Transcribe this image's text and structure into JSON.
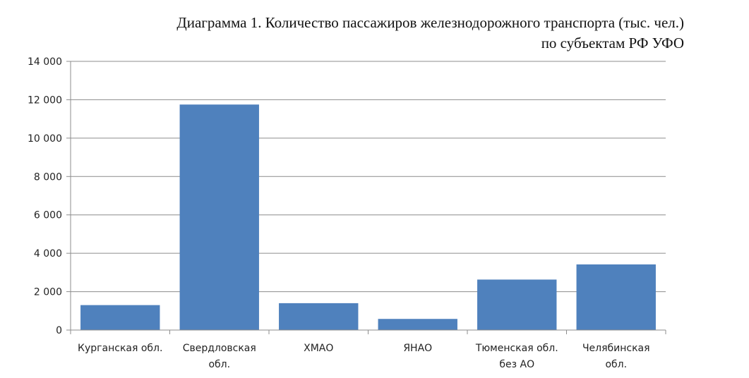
{
  "chart_data": {
    "type": "bar",
    "title_line1": "Диаграмма 1. Количество пассажиров железнодорожного транспорта (тыс. чел.)",
    "title_line2": "по субъектам РФ УФО",
    "categories": [
      [
        "Курганская обл."
      ],
      [
        "Свердловская",
        "обл."
      ],
      [
        "ХМАО"
      ],
      [
        "ЯНАО"
      ],
      [
        "Тюменская обл.",
        "без АО"
      ],
      [
        "Челябинская",
        "обл."
      ]
    ],
    "values": [
      1300,
      11750,
      1400,
      580,
      2630,
      3420
    ],
    "ylim": [
      0,
      14000
    ],
    "yticks": [
      0,
      2000,
      4000,
      6000,
      8000,
      10000,
      12000,
      14000
    ],
    "ytick_labels": [
      "0",
      "2 000",
      "4 000",
      "6 000",
      "8 000",
      "10 000",
      "12 000",
      "14 000"
    ],
    "bar_color": "#4F81BD",
    "grid": true
  }
}
